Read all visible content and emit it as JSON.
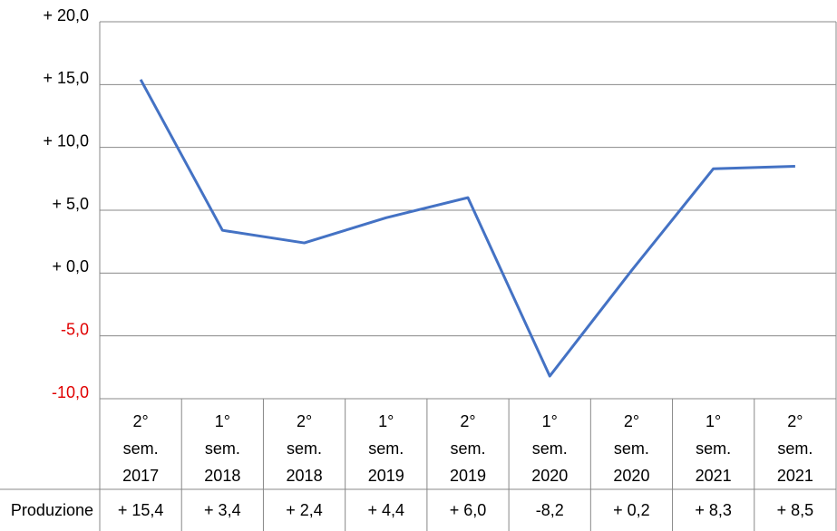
{
  "chart_data": {
    "type": "line",
    "categories": [
      "2° sem. 2017",
      "1° sem. 2018",
      "2° sem. 2018",
      "1° sem. 2019",
      "2° sem. 2019",
      "1° sem. 2020",
      "2° sem. 2020",
      "1° sem. 2021",
      "2° sem. 2021"
    ],
    "series": [
      {
        "name": "Produzione",
        "color": "#4472c4",
        "values": [
          15.4,
          3.4,
          2.4,
          4.4,
          6.0,
          -8.2,
          0.2,
          8.3,
          8.5
        ],
        "value_labels": [
          "+ 15,4",
          "+ 3,4",
          "+ 2,4",
          "+ 4,4",
          "+ 6,0",
          "-8,2",
          "+ 0,2",
          "+ 8,3",
          "+ 8,5"
        ]
      }
    ],
    "ylim": [
      -10,
      20
    ],
    "yticks": [
      {
        "value": 20,
        "label": "+ 20,0"
      },
      {
        "value": 15,
        "label": "+ 15,0"
      },
      {
        "value": 10,
        "label": "+ 10,0"
      },
      {
        "value": 5,
        "label": "+ 5,0"
      },
      {
        "value": 0,
        "label": "+ 0,0"
      },
      {
        "value": -5,
        "label": "-5,0"
      },
      {
        "value": -10,
        "label": "-10,0"
      }
    ],
    "negative_tick_color": "#e00000",
    "grid": true,
    "data_table": true
  }
}
